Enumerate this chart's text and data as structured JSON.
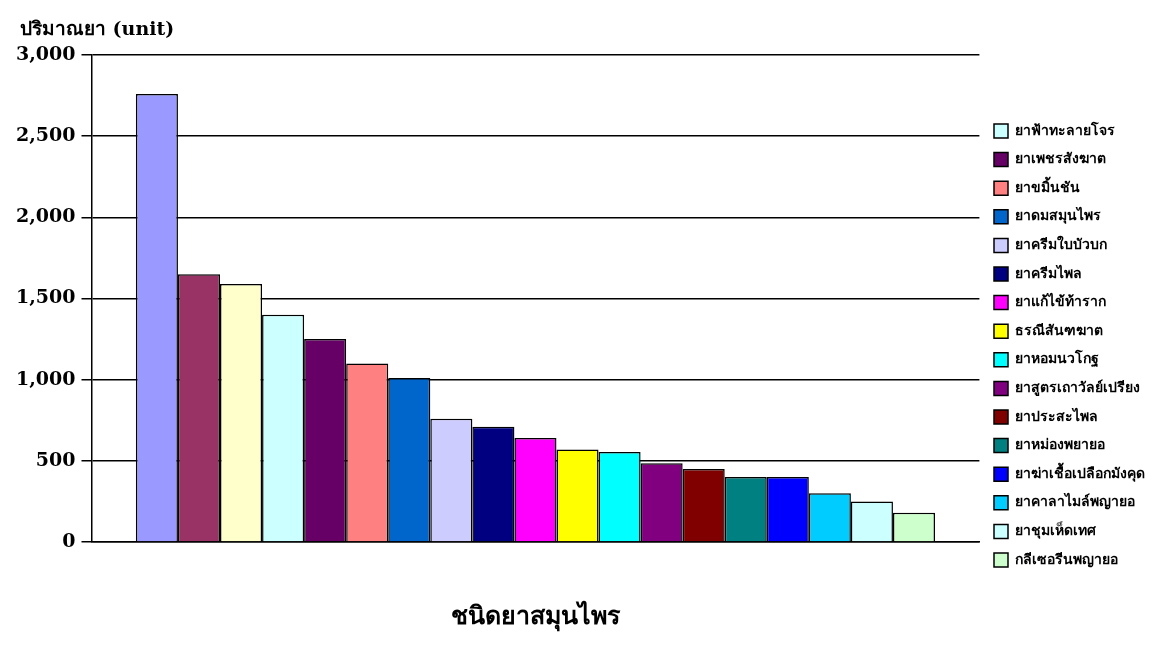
{
  "chart_data": {
    "type": "bar",
    "xlabel": "ชนิดยาสมุนไพร",
    "ylabel": "ปริมาณยา (unit)",
    "categories": [
      null
    ],
    "series": [
      {
        "color": "#9999ff",
        "values": [
          2760
        ]
      },
      {
        "color": "#993366",
        "values": [
          1650
        ]
      },
      {
        "color": "#ffffcc",
        "values": [
          1590
        ]
      },
      {
        "name": "ยาฟ้าทะลายโจร",
        "color": "#ccffff",
        "values": [
          1400
        ]
      },
      {
        "name": "ยาเพชรสังฆาต",
        "color": "#660066",
        "values": [
          1250
        ]
      },
      {
        "name": "ยาขมิ้นชัน",
        "color": "#ff8080",
        "values": [
          1100
        ]
      },
      {
        "name": "ยาดมสมุนไพร",
        "color": "#0066cc",
        "values": [
          1010
        ]
      },
      {
        "name": "ยาครีมใบบัวบก",
        "color": "#ccccff",
        "values": [
          760
        ]
      },
      {
        "name": "ยาครีมไพล",
        "color": "#000080",
        "values": [
          710
        ]
      },
      {
        "name": "ยาแก้ไข้ท้าราก",
        "color": "#ff00ff",
        "values": [
          640
        ]
      },
      {
        "name": "ธรณีสันฑฆาต",
        "color": "#ffff00",
        "values": [
          570
        ]
      },
      {
        "name": "ยาหอมนวโกฐ",
        "color": "#00ffff",
        "values": [
          555
        ]
      },
      {
        "name": "ยาสูตรเถาวัลย์เปรียง",
        "color": "#800080",
        "values": [
          485
        ]
      },
      {
        "name": "ยาประสะไพล",
        "color": "#800000",
        "values": [
          450
        ]
      },
      {
        "name": "ยาหม่องพยายอ",
        "color": "#008080",
        "values": [
          400
        ]
      },
      {
        "name": "ยาฆ่าเชื้อเปลือกมังคุด",
        "color": "#0000ff",
        "values": [
          400
        ]
      },
      {
        "name": "ยาคาลาไมล์พญายอ",
        "color": "#00ccff",
        "values": [
          300
        ]
      },
      {
        "name": "ยาชุมเห็ดเทศ",
        "color": "#ccffff",
        "values": [
          250
        ]
      },
      {
        "name": "กลีเซอรีนพญายอ",
        "color": "#ccffcc",
        "values": [
          180
        ]
      }
    ],
    "ylim": [
      0,
      3000
    ],
    "yticks": [
      0,
      500,
      {
        "value": 1000,
        "label": "1,000"
      },
      {
        "value": 1500,
        "label": "1,500"
      },
      {
        "value": 2000,
        "label": "2,000"
      },
      {
        "value": 2500,
        "label": "2,500"
      },
      {
        "value": 3000,
        "label": "3,000"
      }
    ],
    "grid": "y",
    "legend": "right",
    "tick_labels": "y"
  }
}
